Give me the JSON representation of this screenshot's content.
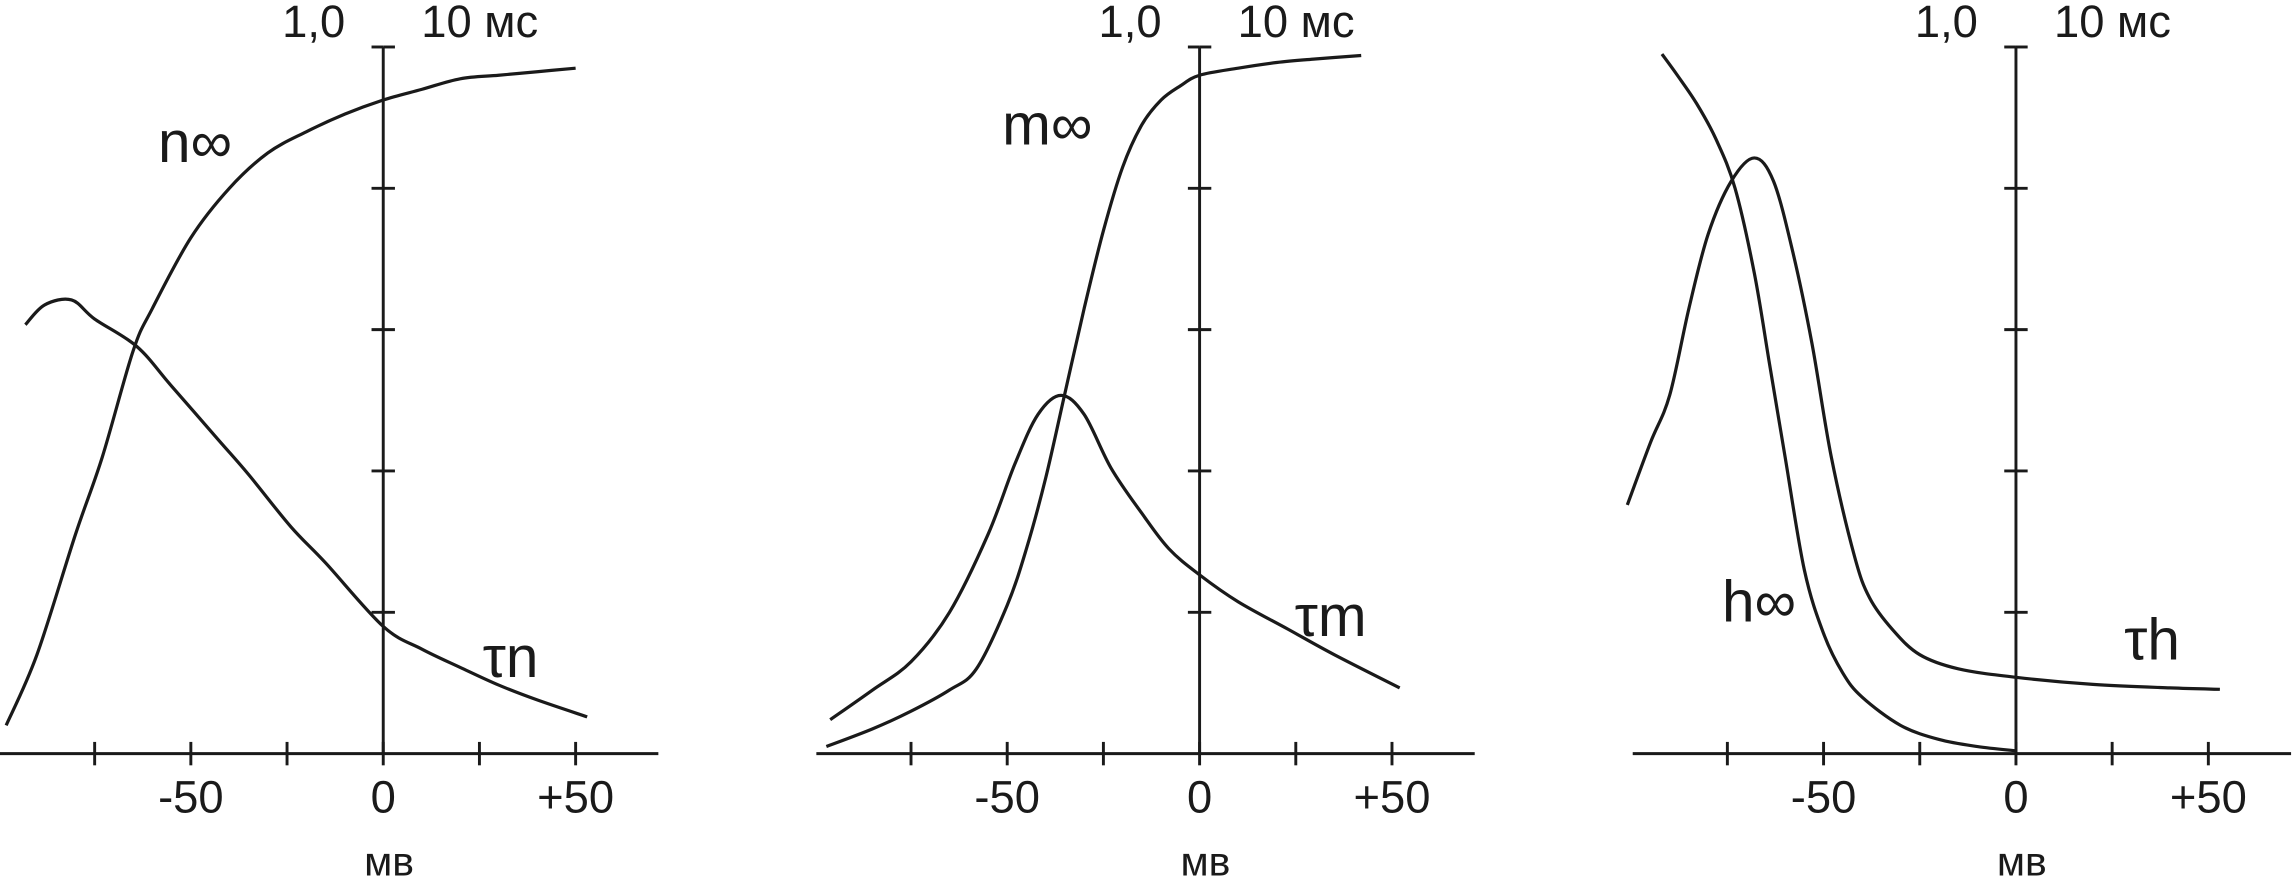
{
  "chart_data": [
    {
      "type": "line",
      "xlabel": "мв",
      "xlim": [
        -99.6,
        71.5
      ],
      "ylim": [
        0,
        1
      ],
      "y2lim": [
        0,
        10
      ],
      "xticks": [
        -50,
        0,
        {
          "value": 50,
          "label": "+50"
        }
      ],
      "minor_xticks": [
        -75,
        -25,
        25
      ],
      "yticks": [
        {
          "value": 1,
          "label": "1,0"
        }
      ],
      "minor_yticks": [
        0.2,
        0.4,
        0.6,
        0.8
      ],
      "y2ticks": [
        {
          "value": 10,
          "label": "10 мс"
        }
      ],
      "series": [
        {
          "name": "n∞",
          "color": "#1a1a1a",
          "x": [
            -98,
            -90,
            -80,
            -73,
            -65,
            -60,
            -50,
            -40,
            -30,
            -20,
            -10,
            0,
            10,
            20,
            30,
            40,
            50
          ],
          "values": [
            0.04,
            0.14,
            0.31,
            0.42,
            0.57,
            0.63,
            0.73,
            0.8,
            0.85,
            0.88,
            0.905,
            0.925,
            0.94,
            0.955,
            0.96,
            0.965,
            0.97
          ]
        },
        {
          "name": "τn",
          "color": "#1a1a1a",
          "axis": "y2",
          "x": [
            -93,
            -88,
            -81,
            -75,
            -64,
            -55,
            -43,
            -35,
            -24,
            -15,
            0,
            10,
            20,
            30,
            40,
            53
          ],
          "values": [
            6.07,
            6.35,
            6.42,
            6.15,
            5.76,
            5.2,
            4.45,
            3.95,
            3.21,
            2.7,
            1.8,
            1.48,
            1.22,
            0.97,
            0.76,
            0.52
          ]
        }
      ]
    },
    {
      "type": "line",
      "xlabel": "мв",
      "xlim": [
        -99.6,
        71.5
      ],
      "ylim": [
        0,
        1
      ],
      "y2lim": [
        0,
        10
      ],
      "xticks": [
        -50,
        0,
        {
          "value": 50,
          "label": "+50"
        }
      ],
      "minor_xticks": [
        -75,
        -25,
        25
      ],
      "yticks": [
        {
          "value": 1,
          "label": "1,0"
        }
      ],
      "minor_yticks": [
        0.2,
        0.4,
        0.6,
        0.8
      ],
      "y2ticks": [
        {
          "value": 10,
          "label": "10 мс"
        }
      ],
      "series": [
        {
          "name": "m∞",
          "color": "#1a1a1a",
          "x": [
            -97,
            -85,
            -75,
            -65,
            -58,
            -50,
            -45,
            -40,
            -35,
            -30,
            -25,
            -20,
            -15,
            -10,
            -5,
            0,
            10,
            20,
            30,
            42
          ],
          "values": [
            0.01,
            0.035,
            0.06,
            0.09,
            0.12,
            0.21,
            0.29,
            0.39,
            0.51,
            0.63,
            0.74,
            0.83,
            0.89,
            0.925,
            0.945,
            0.96,
            0.97,
            0.978,
            0.983,
            0.988
          ]
        },
        {
          "name": "τm",
          "color": "#1a1a1a",
          "axis": "y2",
          "x": [
            -96,
            -85,
            -75,
            -65,
            -55,
            -48,
            -42,
            -36,
            -30,
            -23,
            -15,
            -8,
            0,
            10,
            23,
            35,
            52
          ],
          "values": [
            0.48,
            0.9,
            1.3,
            2.0,
            3.1,
            4.1,
            4.8,
            5.07,
            4.8,
            4.04,
            3.4,
            2.9,
            2.53,
            2.15,
            1.76,
            1.4,
            0.93
          ]
        }
      ]
    },
    {
      "type": "line",
      "xlabel": "мв",
      "xlim": [
        -99.6,
        71.5
      ],
      "ylim": [
        0,
        1
      ],
      "y2lim": [
        0,
        10
      ],
      "xticks": [
        -50,
        0,
        {
          "value": 50,
          "label": "+50"
        }
      ],
      "minor_xticks": [
        -75,
        -25,
        25
      ],
      "yticks": [
        {
          "value": 1,
          "label": "1,0"
        }
      ],
      "minor_yticks": [
        0.2,
        0.4,
        0.6,
        0.8
      ],
      "y2ticks": [
        {
          "value": 10,
          "label": "10 мс"
        }
      ],
      "series": [
        {
          "name": "h∞",
          "color": "#1a1a1a",
          "x": [
            -92,
            -88,
            -83,
            -78,
            -73,
            -68,
            -64,
            -60,
            -55,
            -50,
            -45,
            -40,
            -30,
            -20,
            -10,
            0
          ],
          "values": [
            0.99,
            0.96,
            0.92,
            0.87,
            0.8,
            0.68,
            0.55,
            0.42,
            0.26,
            0.17,
            0.114,
            0.08,
            0.04,
            0.02,
            0.01,
            0.004
          ]
        },
        {
          "name": "τh",
          "color": "#1a1a1a",
          "axis": "y2",
          "x": [
            -101,
            -95,
            -90,
            -85,
            -80,
            -74,
            -68,
            -63,
            -58,
            -53,
            -48,
            -42,
            -38,
            -32,
            -25,
            -15,
            0,
            20,
            40,
            53
          ],
          "values": [
            3.52,
            4.4,
            5.07,
            6.3,
            7.35,
            8.1,
            8.43,
            8.1,
            7.1,
            5.8,
            4.2,
            2.8,
            2.2,
            1.75,
            1.4,
            1.2,
            1.08,
            0.98,
            0.93,
            0.91
          ]
        }
      ]
    }
  ]
}
